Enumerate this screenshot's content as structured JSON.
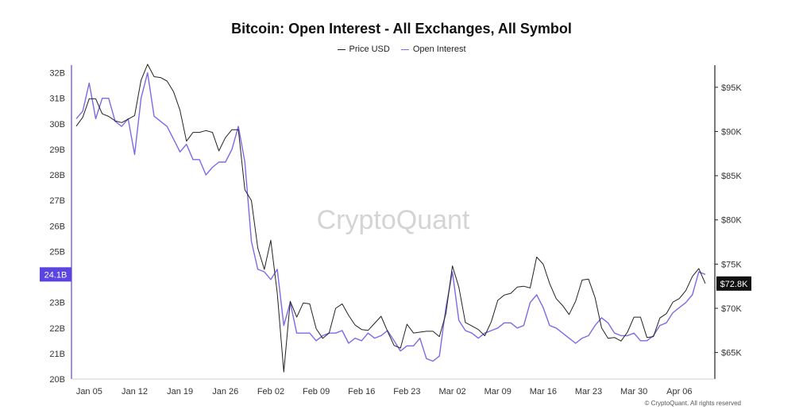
{
  "title": "Bitcoin: Open Interest - All Exchanges, All Symbol",
  "watermark": "CryptoQuant",
  "credit": "© CryptoQuant. All rights reserved",
  "colors": {
    "price": "#222222",
    "oi": "#7b6be6",
    "oi_badge": "#5b45e0",
    "price_badge": "#111111"
  },
  "chart_data": {
    "type": "line",
    "x": [
      "Jan 03",
      "Jan 04",
      "Jan 05",
      "Jan 06",
      "Jan 07",
      "Jan 08",
      "Jan 09",
      "Jan 10",
      "Jan 11",
      "Jan 12",
      "Jan 13",
      "Jan 14",
      "Jan 15",
      "Jan 16",
      "Jan 17",
      "Jan 18",
      "Jan 19",
      "Jan 20",
      "Jan 21",
      "Jan 22",
      "Jan 23",
      "Jan 24",
      "Jan 25",
      "Jan 26",
      "Jan 27",
      "Jan 28",
      "Jan 29",
      "Jan 30",
      "Jan 31",
      "Feb 01",
      "Feb 02",
      "Feb 03",
      "Feb 04",
      "Feb 05",
      "Feb 06",
      "Feb 07",
      "Feb 08",
      "Feb 09",
      "Feb 10",
      "Feb 11",
      "Feb 12",
      "Feb 13",
      "Feb 14",
      "Feb 15",
      "Feb 16",
      "Feb 17",
      "Feb 18",
      "Feb 19",
      "Feb 20",
      "Feb 21",
      "Feb 22",
      "Feb 23",
      "Feb 24",
      "Feb 25",
      "Feb 26",
      "Feb 27",
      "Feb 28",
      "Mar 01",
      "Mar 02",
      "Mar 03",
      "Mar 04",
      "Mar 05",
      "Mar 06",
      "Mar 07",
      "Mar 08",
      "Mar 09",
      "Mar 10",
      "Mar 11",
      "Mar 12",
      "Mar 13",
      "Mar 14",
      "Mar 15",
      "Mar 16",
      "Mar 17",
      "Mar 18",
      "Mar 19",
      "Mar 20",
      "Mar 21",
      "Mar 22",
      "Mar 23",
      "Mar 24",
      "Mar 25",
      "Mar 26",
      "Mar 27",
      "Mar 28",
      "Mar 29",
      "Mar 30",
      "Mar 31",
      "Apr 01",
      "Apr 02",
      "Apr 03",
      "Apr 04",
      "Apr 05",
      "Apr 06",
      "Apr 07",
      "Apr 08",
      "Apr 09",
      "Apr 10"
    ],
    "x_ticks": [
      "Jan 05",
      "Jan 12",
      "Jan 19",
      "Jan 26",
      "Feb 02",
      "Feb 09",
      "Feb 16",
      "Feb 23",
      "Mar 02",
      "Mar 09",
      "Mar 16",
      "Mar 23",
      "Mar 30",
      "Apr 06"
    ],
    "series": [
      {
        "name": "Price USD",
        "axis": "right",
        "values": [
          90600,
          91600,
          93700,
          93700,
          92000,
          91700,
          91200,
          91000,
          91400,
          91800,
          95800,
          97600,
          96200,
          96100,
          95700,
          94500,
          92400,
          88900,
          89900,
          89900,
          90100,
          89900,
          87800,
          89300,
          90200,
          90200,
          83400,
          82200,
          76800,
          74400,
          77700,
          71700,
          62800,
          70800,
          69000,
          70600,
          70500,
          67700,
          66600,
          67200,
          70000,
          70500,
          69200,
          68100,
          67600,
          67500,
          68300,
          69100,
          67400,
          65800,
          65500,
          68200,
          67200,
          67300,
          67400,
          67400,
          66800,
          69400,
          74800,
          72400,
          68400,
          68000,
          67600,
          66900,
          68500,
          70900,
          71500,
          71700,
          72400,
          72500,
          72300,
          75800,
          75000,
          72800,
          71100,
          70300,
          69300,
          70800,
          73200,
          73300,
          71200,
          67800,
          66600,
          66700,
          66300,
          67300,
          69000,
          69000,
          66700,
          66800,
          68900,
          69400,
          70700,
          71100,
          72000,
          73600,
          74500,
          72800
        ]
      },
      {
        "name": "Open Interest",
        "axis": "left",
        "values": [
          30.2,
          30.5,
          31.6,
          30.2,
          31.0,
          31.0,
          30.1,
          29.9,
          30.2,
          28.8,
          31.0,
          32.0,
          30.3,
          30.1,
          29.9,
          29.4,
          28.9,
          29.2,
          28.6,
          28.6,
          28.0,
          28.3,
          28.5,
          28.5,
          29.0,
          29.9,
          28.5,
          25.4,
          24.3,
          24.2,
          23.9,
          24.3,
          22.1,
          23.0,
          21.8,
          21.8,
          21.8,
          21.5,
          21.7,
          21.8,
          21.8,
          21.9,
          21.4,
          21.6,
          21.5,
          21.8,
          21.6,
          21.7,
          21.9,
          21.5,
          21.1,
          21.3,
          21.3,
          21.6,
          20.8,
          20.7,
          20.9,
          22.8,
          24.2,
          22.3,
          21.9,
          21.8,
          21.6,
          21.8,
          21.9,
          22.0,
          22.2,
          22.2,
          22.0,
          22.1,
          23.0,
          23.3,
          22.8,
          22.1,
          22.0,
          21.8,
          21.6,
          21.4,
          21.6,
          21.7,
          22.1,
          22.4,
          22.2,
          21.8,
          21.7,
          21.7,
          21.8,
          21.5,
          21.5,
          21.7,
          22.1,
          22.2,
          22.6,
          22.8,
          23.0,
          23.3,
          24.2,
          24.1
        ]
      }
    ],
    "y_left": {
      "ticks": [
        "20B",
        "21B",
        "22B",
        "23B",
        "24B",
        "25B",
        "26B",
        "27B",
        "28B",
        "29B",
        "30B",
        "31B",
        "32B"
      ],
      "range": [
        20,
        32.3
      ]
    },
    "y_right": {
      "ticks": [
        "$65K",
        "$70K",
        "$75K",
        "$80K",
        "$85K",
        "$90K",
        "$95K"
      ],
      "range": [
        62000,
        97500
      ]
    },
    "current_labels": {
      "left": "24.1B",
      "right": "$72.8K"
    },
    "legend_position": "top-center",
    "grid": false
  }
}
